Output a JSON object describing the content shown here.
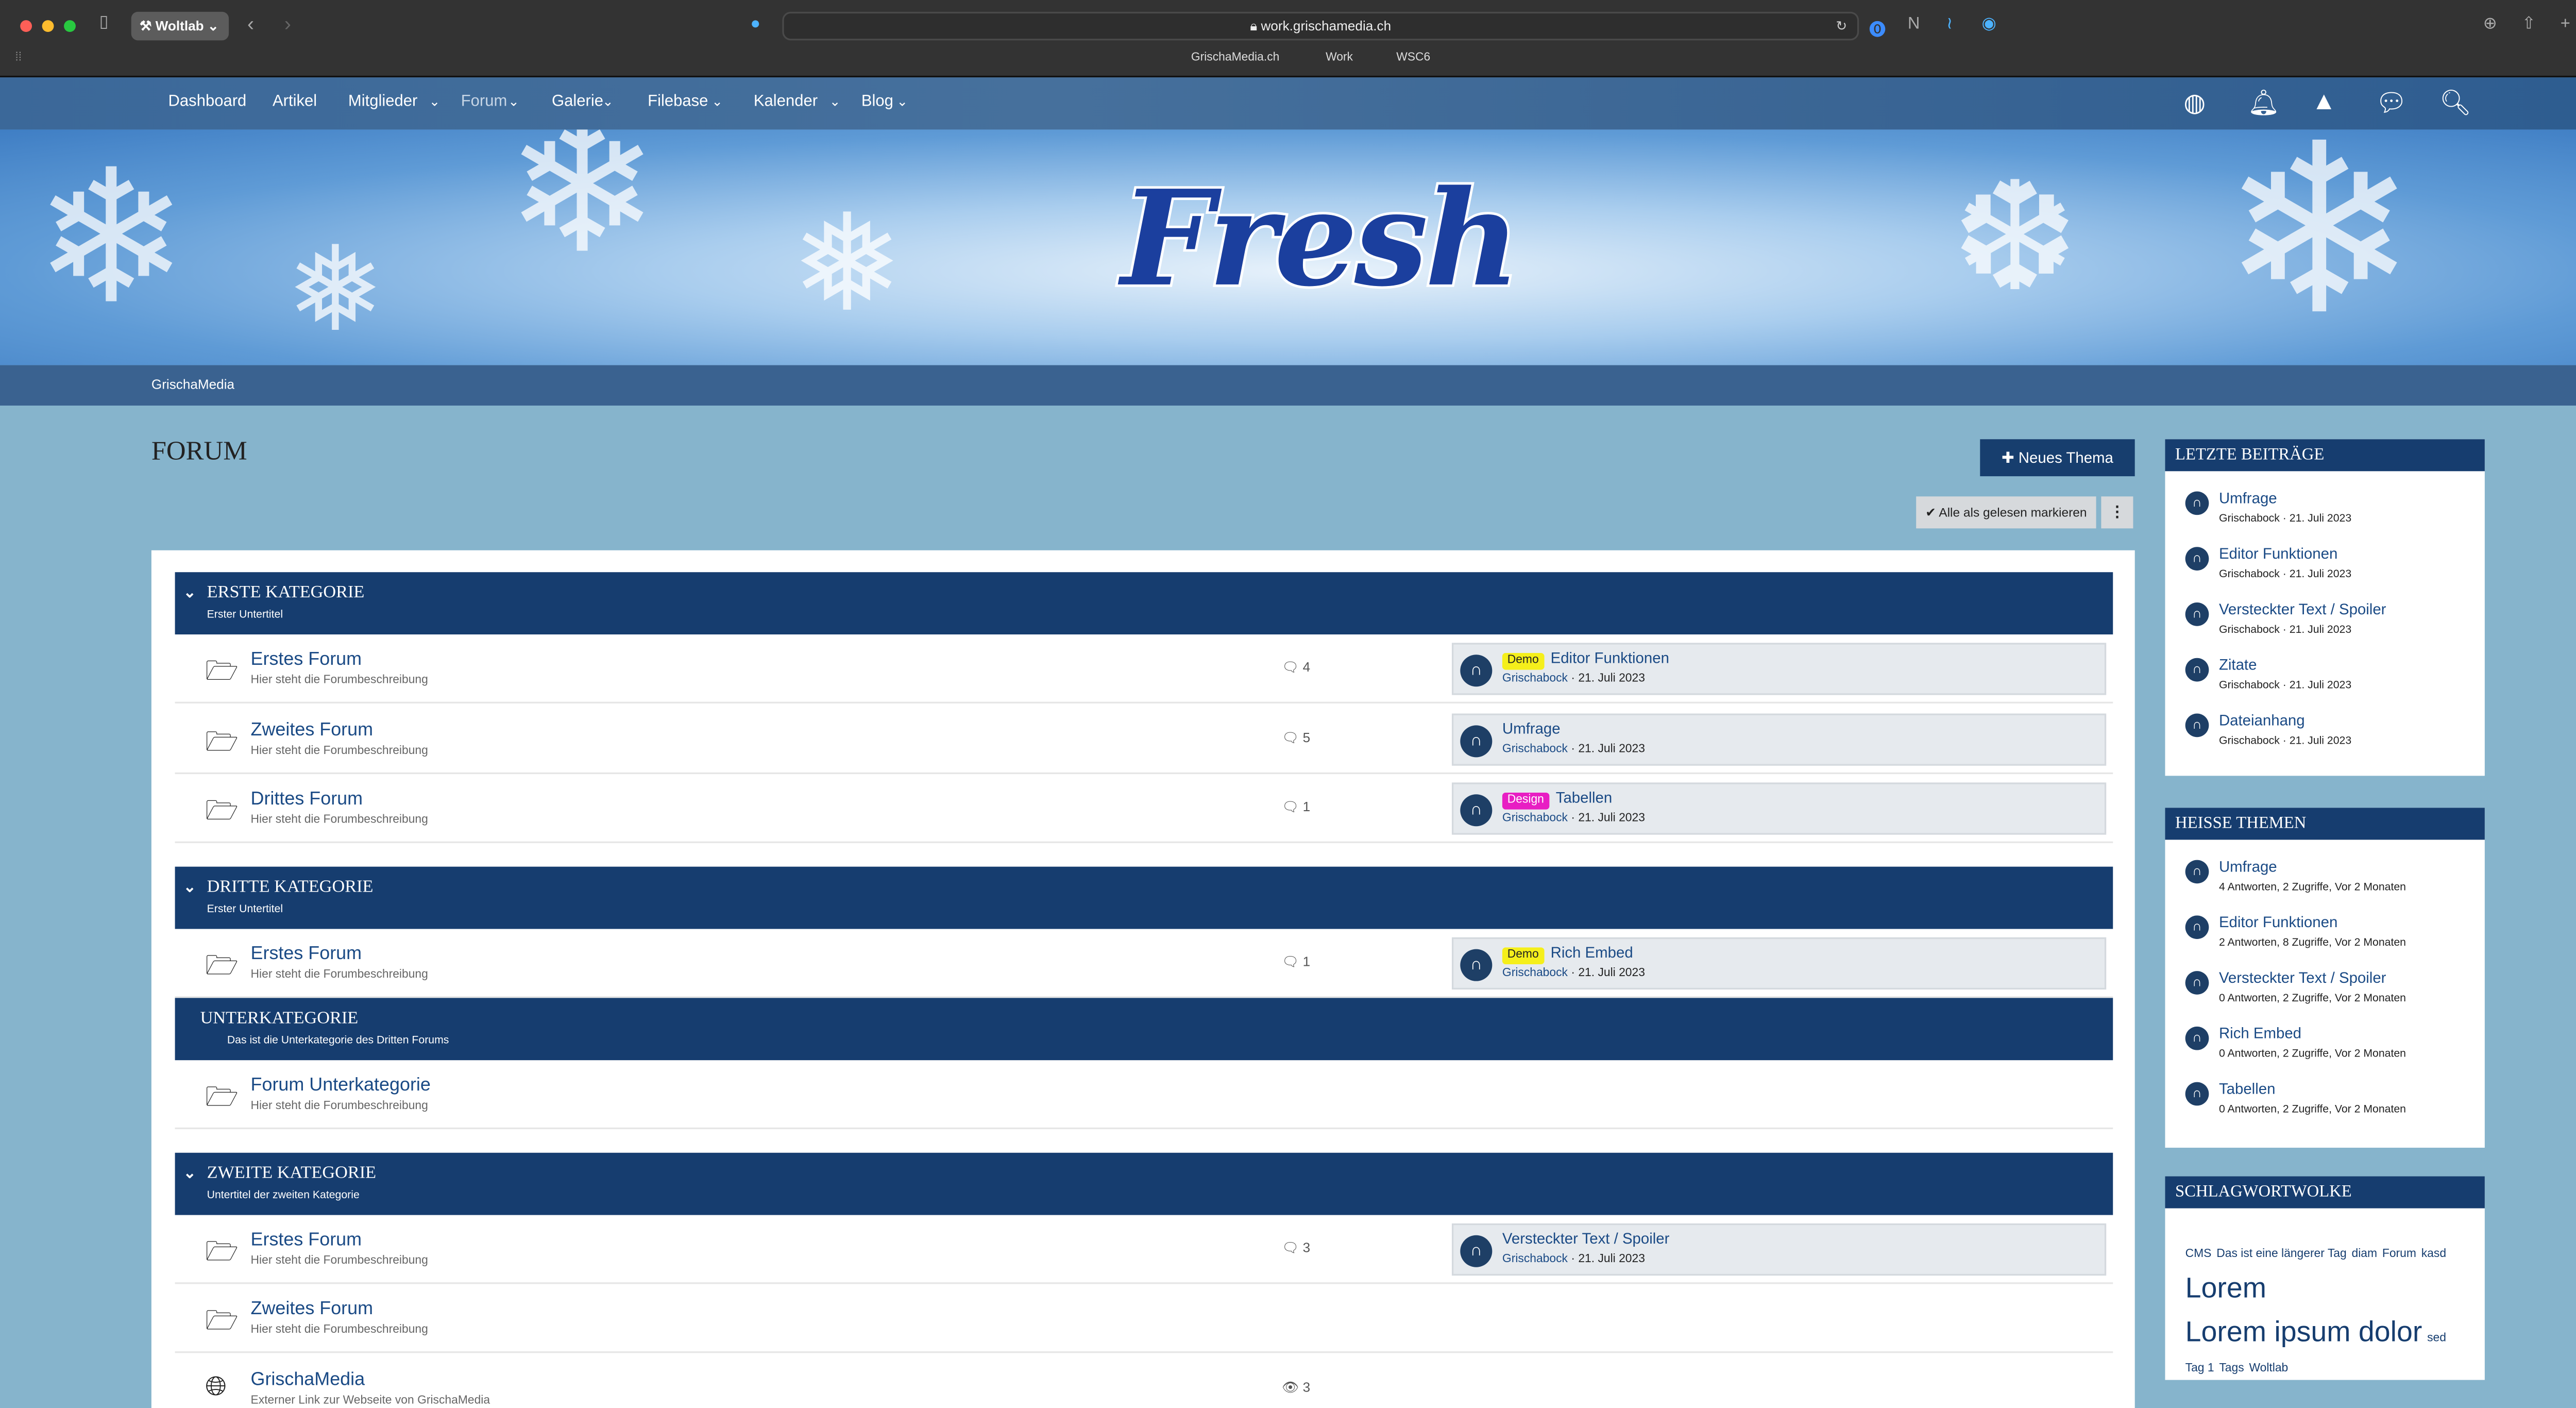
{
  "browser": {
    "tab_group": "Woltlab",
    "url": "work.grischamedia.ch",
    "bookmarks": [
      "GrischaMedia.ch",
      "Work",
      "WSC6"
    ]
  },
  "nav": {
    "items": [
      {
        "label": "Dashboard",
        "dropdown": false
      },
      {
        "label": "Artikel",
        "dropdown": false
      },
      {
        "label": "Mitglieder",
        "dropdown": true
      },
      {
        "label": "Forum",
        "dropdown": true,
        "active": true
      },
      {
        "label": "Galerie",
        "dropdown": true
      },
      {
        "label": "Filebase",
        "dropdown": true
      },
      {
        "label": "Kalender",
        "dropdown": true
      },
      {
        "label": "Blog",
        "dropdown": true
      }
    ],
    "icons": [
      "user-avatar-icon",
      "bell-icon",
      "warning-icon",
      "chat-icon",
      "search-icon"
    ]
  },
  "banner": {
    "logo_text": "Fresh"
  },
  "breadcrumb": "GrischaMedia",
  "page": {
    "title": "FORUM",
    "new_thread": "Neues Thema",
    "mark_read": "Alle als gelesen markieren"
  },
  "colors": {
    "accent": "#163d6f",
    "background": "#86b4cc",
    "badge_demo": "#f5ef1b",
    "badge_design": "#e81ec3"
  },
  "sections": [
    {
      "title": "ERSTE KATEGORIE",
      "subtitle": "Erster Untertitel",
      "collapsible": true,
      "forums": [
        {
          "name": "Erstes Forum",
          "desc": "Hier steht die Forumbeschreibung",
          "count": "4",
          "count_icon": "comment",
          "last": {
            "badge": "Demo",
            "title": "Editor Funktionen",
            "author": "Grischabock",
            "date": "21. Juli 2023"
          }
        },
        {
          "name": "Zweites Forum",
          "desc": "Hier steht die Forumbeschreibung",
          "count": "5",
          "count_icon": "comment",
          "last": {
            "badge": "",
            "title": "Umfrage",
            "author": "Grischabock",
            "date": "21. Juli 2023"
          }
        },
        {
          "name": "Drittes Forum",
          "desc": "Hier steht die Forumbeschreibung",
          "count": "1",
          "count_icon": "comment",
          "last": {
            "badge": "Design",
            "title": "Tabellen",
            "author": "Grischabock",
            "date": "21. Juli 2023"
          }
        }
      ]
    },
    {
      "title": "DRITTE KATEGORIE",
      "subtitle": "Erster Untertitel",
      "collapsible": true,
      "forums": [
        {
          "name": "Erstes Forum",
          "desc": "Hier steht die Forumbeschreibung",
          "count": "1",
          "count_icon": "comment",
          "last": {
            "badge": "Demo",
            "title": "Rich Embed",
            "author": "Grischabock",
            "date": "21. Juli 2023"
          }
        }
      ]
    },
    {
      "title": "UNTERKATEGORIE",
      "subtitle": "Das ist die Unterkategorie des Dritten Forums",
      "collapsible": false,
      "forums": [
        {
          "name": "Forum Unterkategorie",
          "desc": "Hier steht die Forumbeschreibung",
          "count": "",
          "count_icon": "",
          "last": null
        }
      ]
    },
    {
      "title": "ZWEITE KATEGORIE",
      "subtitle": "Untertitel der zweiten Kategorie",
      "collapsible": true,
      "forums": [
        {
          "name": "Erstes Forum",
          "desc": "Hier steht die Forumbeschreibung",
          "count": "3",
          "count_icon": "comment",
          "last": {
            "badge": "",
            "title": "Versteckter Text / Spoiler",
            "author": "Grischabock",
            "date": "21. Juli 2023"
          }
        },
        {
          "name": "Zweites Forum",
          "desc": "Hier steht die Forumbeschreibung",
          "count": "",
          "count_icon": "",
          "last": null
        },
        {
          "name": "GrischaMedia",
          "desc": "Externer Link zur Webseite von GrischaMedia",
          "count": "3",
          "count_icon": "eye",
          "link": true,
          "last": null
        }
      ]
    }
  ],
  "sidebar": {
    "recent": {
      "title": "LETZTE BEITRÄGE",
      "items": [
        {
          "title": "Umfrage",
          "meta": "Grischabock · 21. Juli 2023"
        },
        {
          "title": "Editor Funktionen",
          "meta": "Grischabock · 21. Juli 2023"
        },
        {
          "title": "Versteckter Text / Spoiler",
          "meta": "Grischabock · 21. Juli 2023"
        },
        {
          "title": "Zitate",
          "meta": "Grischabock · 21. Juli 2023"
        },
        {
          "title": "Dateianhang",
          "meta": "Grischabock · 21. Juli 2023"
        }
      ]
    },
    "hot": {
      "title": "HEISSE THEMEN",
      "items": [
        {
          "title": "Umfrage",
          "meta": "4 Antworten, 2 Zugriffe, Vor 2 Monaten"
        },
        {
          "title": "Editor Funktionen",
          "meta": "2 Antworten, 8 Zugriffe, Vor 2 Monaten"
        },
        {
          "title": "Versteckter Text / Spoiler",
          "meta": "0 Antworten, 2 Zugriffe, Vor 2 Monaten"
        },
        {
          "title": "Rich Embed",
          "meta": "0 Antworten, 2 Zugriffe, Vor 2 Monaten"
        },
        {
          "title": "Tabellen",
          "meta": "0 Antworten, 2 Zugriffe, Vor 2 Monaten"
        }
      ]
    },
    "tags": {
      "title": "SCHLAGWORTWOLKE",
      "items": [
        {
          "label": "CMS",
          "size": "small"
        },
        {
          "label": "Das ist eine längerer Tag",
          "size": "small"
        },
        {
          "label": "diam",
          "size": "small"
        },
        {
          "label": "Forum",
          "size": "small"
        },
        {
          "label": "kasd",
          "size": "small"
        },
        {
          "label": "Lorem",
          "size": "large"
        },
        {
          "label": "Lorem ipsum dolor",
          "size": "large"
        },
        {
          "label": "sed",
          "size": "small"
        },
        {
          "label": "Tag 1",
          "size": "small"
        },
        {
          "label": "Tags",
          "size": "small"
        },
        {
          "label": "Woltlab",
          "size": "small"
        }
      ]
    }
  }
}
